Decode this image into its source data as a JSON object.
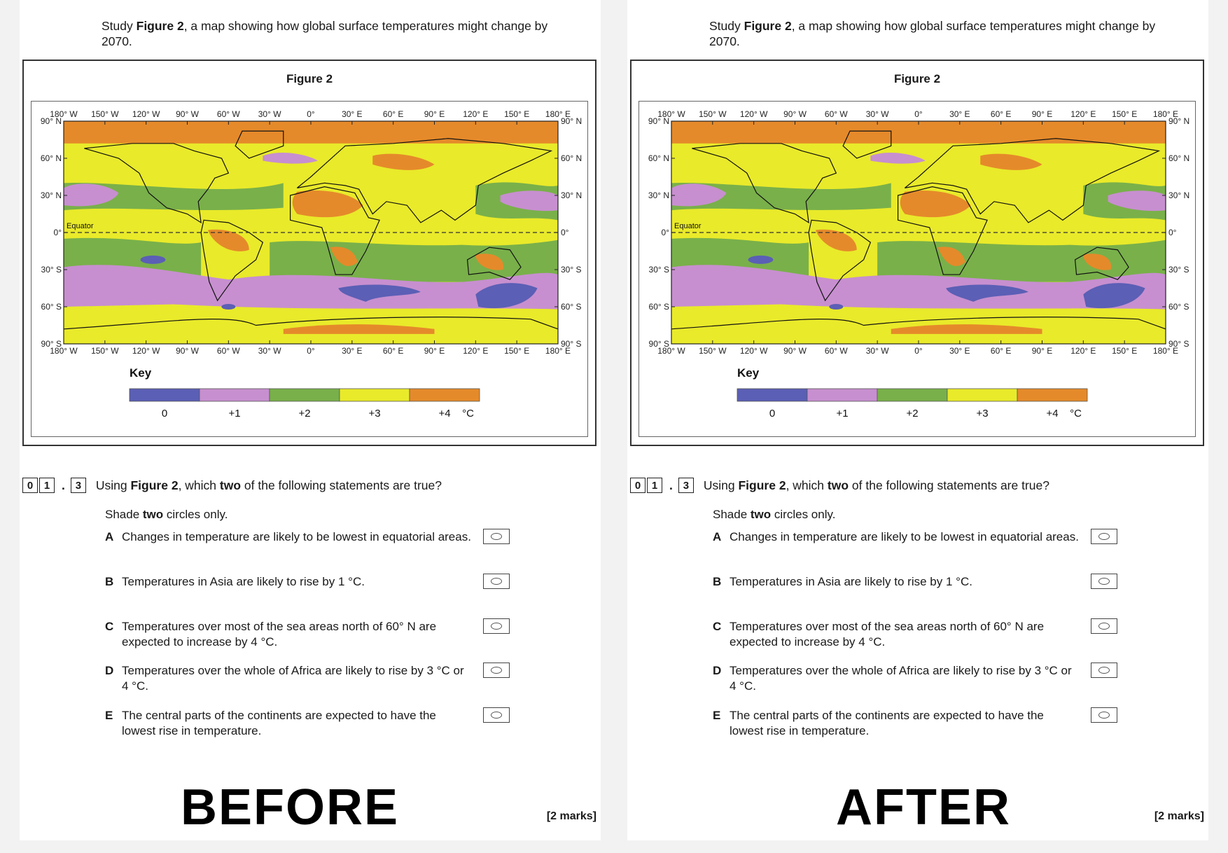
{
  "panels": [
    {
      "id": "before",
      "banner": "BEFORE",
      "intro": {
        "prefix": "Study ",
        "bold": "Figure 2",
        "suffix": ", a map showing how global surface temperatures might change by 2070."
      },
      "figure_title": "Figure 2",
      "question": {
        "number_boxes": [
          "0",
          "1",
          "3"
        ],
        "text_prefix": "Using ",
        "text_bold1": "Figure 2",
        "text_mid": ", which ",
        "text_bold2": "two",
        "text_suffix": " of the following statements are true?"
      },
      "shade": {
        "prefix": "Shade ",
        "bold": "two",
        "suffix": " circles only."
      },
      "marks": "[2 marks]"
    },
    {
      "id": "after",
      "banner": "AFTER",
      "intro": {
        "prefix": "Study ",
        "bold": "Figure 2",
        "suffix": ", a map showing how global surface temperatures might change by 2070."
      },
      "figure_title": "Figure 2",
      "question": {
        "number_boxes": [
          "0",
          "1",
          "3"
        ],
        "text_prefix": "Using ",
        "text_bold1": "Figure 2",
        "text_mid": ", which ",
        "text_bold2": "two",
        "text_suffix": " of the following statements are true?"
      },
      "shade": {
        "prefix": "Shade ",
        "bold": "two",
        "suffix": " circles only."
      },
      "marks": "[2 marks]"
    }
  ],
  "map": {
    "top_lon_labels": [
      "180° W",
      "150° W",
      "120° W",
      "90° W",
      "60° W",
      "30° W",
      "0°",
      "30° E",
      "60° E",
      "90° E",
      "120° E",
      "150° E",
      "180° E"
    ],
    "bottom_lon_labels": [
      "180° W",
      "150° W",
      "120° W",
      "90° W",
      "60° W",
      "30° W",
      "0°",
      "30° E",
      "60° E",
      "90° E",
      "120° E",
      "150° E",
      "180° E"
    ],
    "left_lat_labels": [
      "90° N",
      "60° N",
      "30° N",
      "0°",
      "30° S",
      "60° S",
      "90° S"
    ],
    "right_lat_labels": [
      "90° N",
      "60° N",
      "30° N",
      "0°",
      "30° S",
      "60° S",
      "90° S"
    ],
    "equator_label": "Equator",
    "key_title": "Key",
    "key_items": [
      {
        "value": "0",
        "color": "#5b5fb5"
      },
      {
        "value": "+1",
        "color": "#c78fcf"
      },
      {
        "value": "+2",
        "color": "#79b04a"
      },
      {
        "value": "+3",
        "color": "#e9ea2a"
      },
      {
        "value": "+4",
        "color": "#e58a2a"
      }
    ],
    "key_unit": "°C"
  },
  "options": [
    {
      "letter": "A",
      "text": "Changes in temperature are likely to be lowest in equatorial areas."
    },
    {
      "letter": "B",
      "text": "Temperatures in Asia are likely to rise by 1 °C."
    },
    {
      "letter": "C",
      "text": "Temperatures over most of the sea areas north of 60° N are expected to increase by 4 °C."
    },
    {
      "letter": "D",
      "text": "Temperatures over the whole of Africa are likely to rise by 3 °C or 4 °C."
    },
    {
      "letter": "E",
      "text": "The central parts of the continents are expected to have the lowest rise in temperature."
    }
  ]
}
